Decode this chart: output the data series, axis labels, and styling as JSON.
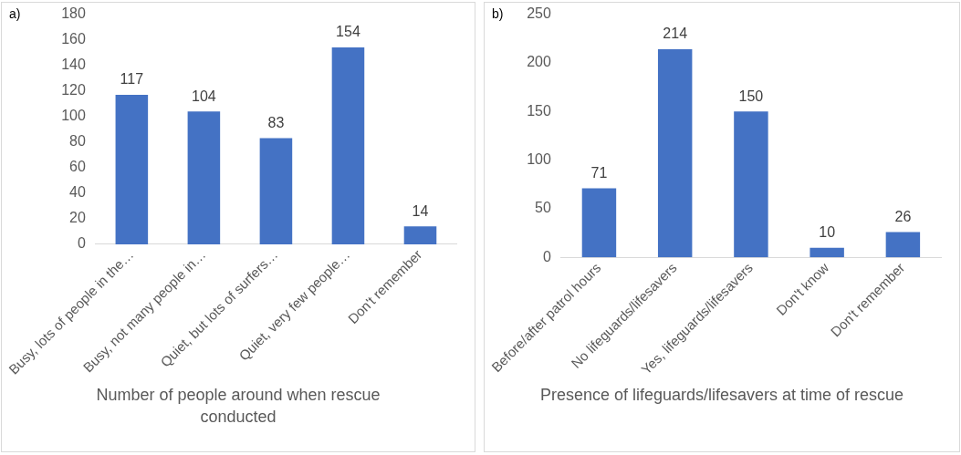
{
  "chart_data": [
    {
      "type": "bar",
      "annotations": [
        "a)"
      ],
      "xlabel": "Number of people around when rescue conducted",
      "categories": [
        "Busy, lots of people in the…",
        "Busy, not many people in…",
        "Quiet, but lots of surfers…",
        "Quiet, very few people…",
        "Don't remember"
      ],
      "values": [
        117,
        104,
        83,
        154,
        14
      ],
      "color": "#4472c4",
      "ylim": [
        0,
        180
      ],
      "yticks": [
        0,
        20,
        40,
        60,
        80,
        100,
        120,
        140,
        160,
        180
      ],
      "grid": false,
      "data_labels": true
    },
    {
      "type": "bar",
      "annotations": [
        "b)"
      ],
      "xlabel": "Presence of lifeguards/lifesavers at time of rescue",
      "categories": [
        "Before/after patrol hours",
        "No lifeguards/lifesavers",
        "Yes, lifeguards/lifesavers",
        "Don't know",
        "Don't remember"
      ],
      "values": [
        71,
        214,
        150,
        10,
        26
      ],
      "color": "#4472c4",
      "ylim": [
        0,
        250
      ],
      "yticks": [
        0,
        50,
        100,
        150,
        200,
        250
      ],
      "grid": false,
      "data_labels": true
    }
  ]
}
